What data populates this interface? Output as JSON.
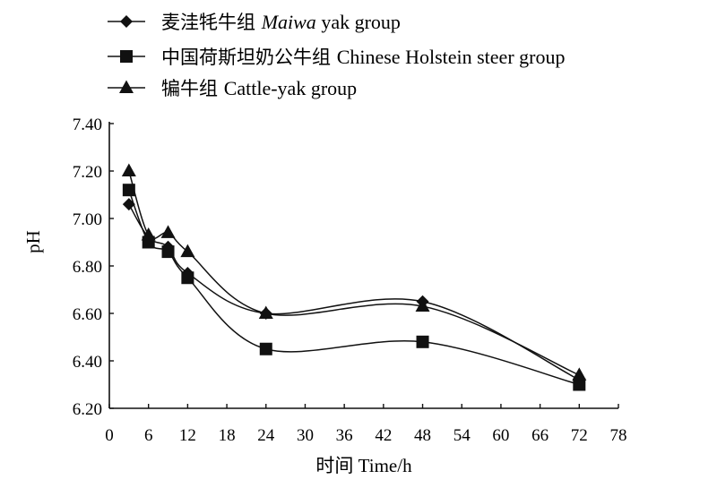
{
  "chart_data": {
    "type": "line",
    "x": [
      3,
      6,
      9,
      12,
      24,
      48,
      72
    ],
    "series": [
      {
        "name": "麦洼牦牛组 Maiwa yak group",
        "name_cn": "麦洼牦牛组 ",
        "name_en": "Maiwa",
        "name_tail": " yak group",
        "marker": "diamond",
        "values": [
          7.06,
          6.92,
          6.88,
          6.77,
          6.6,
          6.65,
          6.32
        ]
      },
      {
        "name": "中国荷斯坦奶公牛组 Chinese Holstein steer group",
        "name_cn": "中国荷斯坦奶公牛组 ",
        "name_en": "Chinese Holstein steer group",
        "name_tail": "",
        "marker": "square",
        "values": [
          7.12,
          6.9,
          6.86,
          6.75,
          6.45,
          6.48,
          6.3
        ]
      },
      {
        "name": "犏牛组 Cattle-yak group",
        "name_cn": "犏牛组 ",
        "name_en": "Cattle-yak group",
        "name_tail": "",
        "marker": "triangle",
        "values": [
          7.2,
          6.93,
          6.94,
          6.86,
          6.6,
          6.63,
          6.34
        ]
      }
    ],
    "xlabel": "时间  Time/h",
    "ylabel": "pH",
    "xlim": [
      0,
      78
    ],
    "ylim": [
      6.2,
      7.4
    ],
    "xticks": [
      0,
      6,
      12,
      18,
      24,
      30,
      36,
      42,
      48,
      54,
      60,
      66,
      72,
      78
    ],
    "yticks": [
      "6.20",
      "6.40",
      "6.60",
      "6.80",
      "7.00",
      "7.20",
      "7.40"
    ],
    "grid": false,
    "legend": "top-left",
    "line_color": "#111111"
  }
}
